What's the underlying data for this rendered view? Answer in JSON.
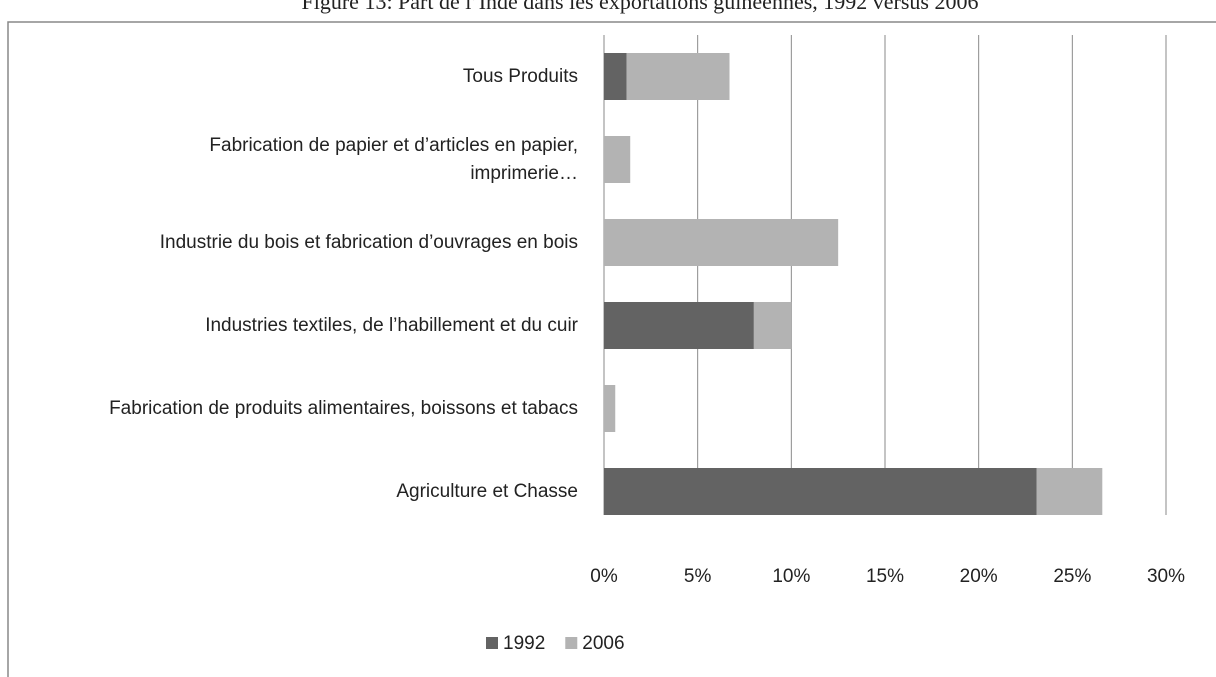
{
  "chart_data": {
    "type": "stacked-barh",
    "title": "Figure 13: Part de l’Inde dans les exportations guinéennes, 1992 versus 2006",
    "categories": [
      "Tous Produits",
      "Fabrication de papier et d’articles en papier, imprimerie…",
      "Industrie du bois et fabrication d’ouvrages en bois",
      "Industries textiles, de l’habillement et du cuir",
      "Fabrication de produits alimentaires, boissons et tabacs",
      "Agriculture et Chasse"
    ],
    "series": [
      {
        "name": "1992",
        "color": "#636363",
        "values": [
          1.2,
          0,
          0,
          8.0,
          0,
          23.1
        ]
      },
      {
        "name": "2006",
        "color": "#b3b3b3",
        "values": [
          5.5,
          1.4,
          12.5,
          2.0,
          0.6,
          3.5
        ]
      }
    ],
    "xlim": [
      0,
      30
    ],
    "xticks": [
      {
        "value": 0,
        "label": "0%"
      },
      {
        "value": 5,
        "label": "5%"
      },
      {
        "value": 10,
        "label": "10%"
      },
      {
        "value": 15,
        "label": "15%"
      },
      {
        "value": 20,
        "label": "20%"
      },
      {
        "value": 25,
        "label": "25%"
      },
      {
        "value": 30,
        "label": "30%"
      }
    ],
    "grid": true,
    "legend": "bottom"
  }
}
